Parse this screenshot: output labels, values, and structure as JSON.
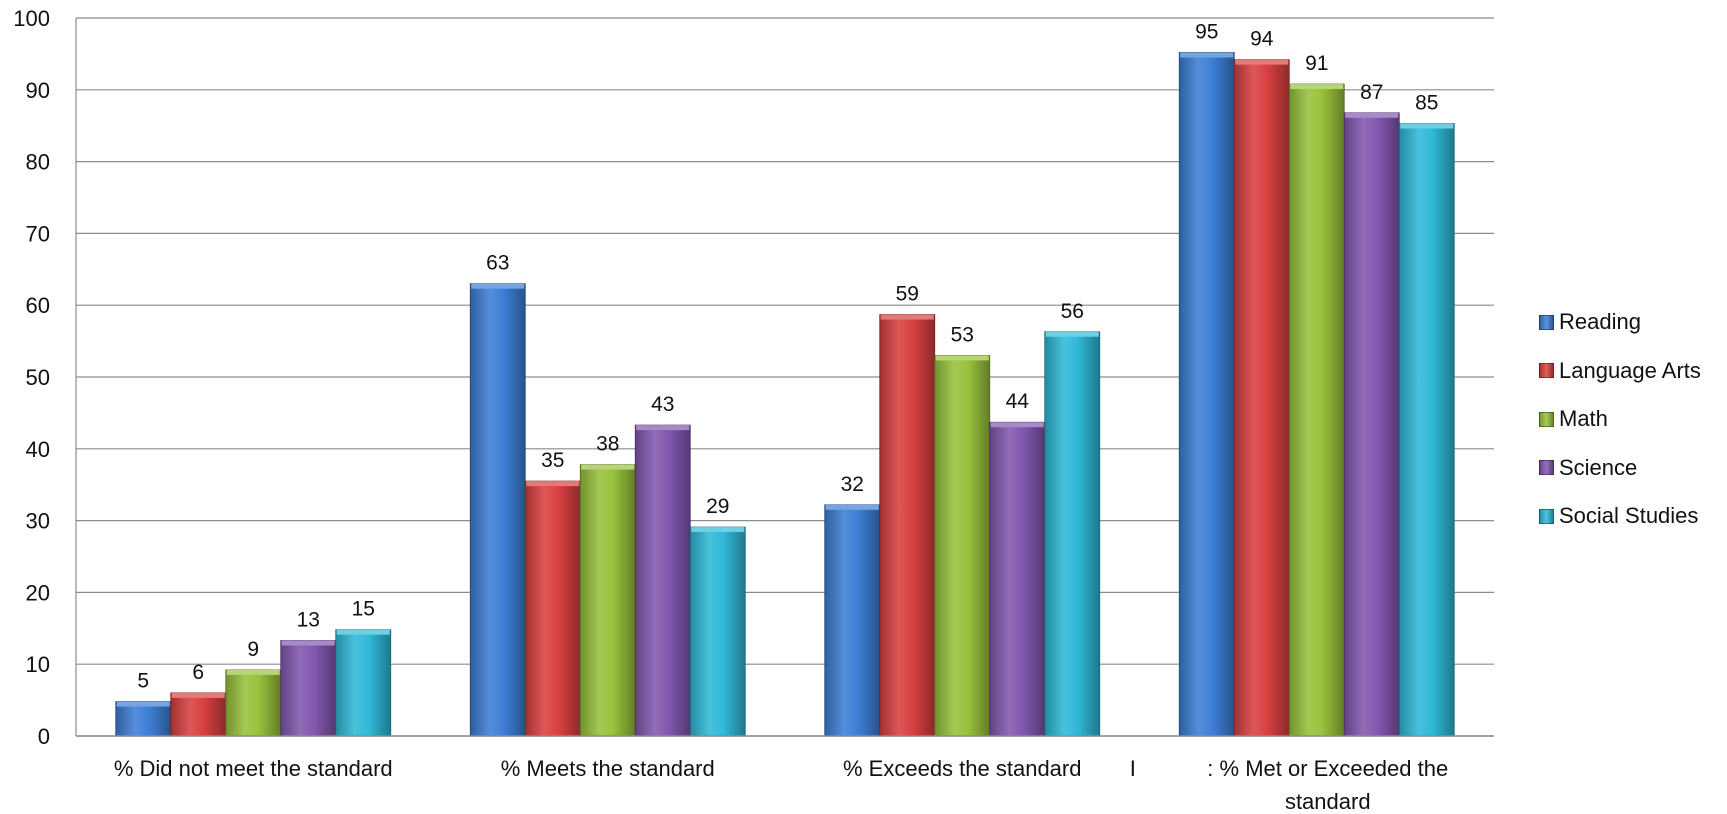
{
  "chart_data": {
    "type": "bar",
    "title": "",
    "xlabel": "",
    "ylabel": "",
    "ylim": [
      0,
      100
    ],
    "yticks": [
      0,
      10,
      20,
      30,
      40,
      50,
      60,
      70,
      80,
      90,
      100
    ],
    "grid": true,
    "legend_position": "right",
    "categories": [
      [
        "% Did not meet the standard"
      ],
      [
        "% Meets the standard"
      ],
      [
        "% Exceeds the standard"
      ],
      [
        "I",
        ": % Met or Exceeded the",
        "standard"
      ]
    ],
    "series": [
      {
        "name": "Reading",
        "color": "#3d7fd6",
        "values": [
          5,
          63,
          32,
          95
        ]
      },
      {
        "name": "Language Arts",
        "color": "#d94040",
        "values": [
          6,
          35,
          59,
          94
        ]
      },
      {
        "name": "Math",
        "color": "#98c23c",
        "values": [
          9,
          38,
          53,
          91
        ]
      },
      {
        "name": "Science",
        "color": "#8258b0",
        "values": [
          13,
          43,
          44,
          87
        ]
      },
      {
        "name": "Social Studies",
        "color": "#2fb9d8",
        "values": [
          15,
          29,
          56,
          85
        ]
      }
    ],
    "bar_heights": [
      [
        4.8,
        63,
        32.2,
        95.2
      ],
      [
        6,
        35.5,
        58.7,
        94.2
      ],
      [
        9.2,
        37.8,
        53,
        90.8
      ],
      [
        13.3,
        43.3,
        43.7,
        86.8
      ],
      [
        14.8,
        29.1,
        56.3,
        85.3
      ]
    ]
  }
}
